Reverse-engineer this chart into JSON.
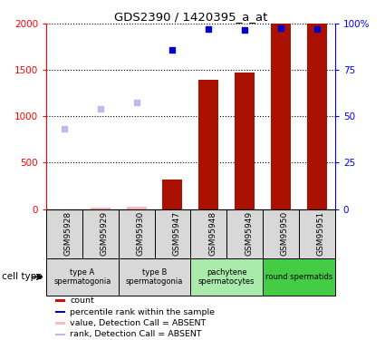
{
  "title": "GDS2390 / 1420395_a_at",
  "samples": [
    "GSM95928",
    "GSM95929",
    "GSM95930",
    "GSM95947",
    "GSM95948",
    "GSM95949",
    "GSM95950",
    "GSM95951"
  ],
  "bar_values": [
    0,
    0,
    0,
    320,
    1400,
    1470,
    2000,
    2000
  ],
  "absent_bar_values": [
    0,
    15,
    20,
    20,
    0,
    0,
    0,
    0
  ],
  "rank_present": [
    null,
    null,
    null,
    1720,
    1940,
    1930,
    1950,
    1940
  ],
  "rank_absent": [
    870,
    1080,
    1150,
    null,
    null,
    null,
    null,
    null
  ],
  "ylim": [
    0,
    2000
  ],
  "y2lim": [
    0,
    100
  ],
  "yticks": [
    0,
    500,
    1000,
    1500,
    2000
  ],
  "ytick_labels": [
    "0",
    "500",
    "1000",
    "1500",
    "2000"
  ],
  "y2ticks": [
    0,
    25,
    50,
    75,
    100
  ],
  "y2tick_labels": [
    "0",
    "25",
    "50",
    "75",
    "100%"
  ],
  "cell_type_groups": [
    {
      "label": "type A\nspermatogonia",
      "start": 0,
      "end": 2,
      "color": "#d8d8d8"
    },
    {
      "label": "type B\nspermatogonia",
      "start": 2,
      "end": 4,
      "color": "#d8d8d8"
    },
    {
      "label": "pachytene\nspermatocytes",
      "start": 4,
      "end": 6,
      "color": "#aaeaaa"
    },
    {
      "label": "round spermatids",
      "start": 6,
      "end": 8,
      "color": "#44cc44"
    }
  ],
  "legend_items": [
    {
      "color": "#cc1100",
      "label": "count"
    },
    {
      "color": "#0000cc",
      "label": "percentile rank within the sample"
    },
    {
      "color": "#ffbbbb",
      "label": "value, Detection Call = ABSENT"
    },
    {
      "color": "#bbbbee",
      "label": "rank, Detection Call = ABSENT"
    }
  ],
  "bar_color": "#aa1100",
  "absent_bar_color": "#ffbbbb",
  "present_rank_color": "#0000cc",
  "absent_rank_color": "#bbbbee",
  "bar_width": 0.55,
  "cell_type_label": "cell type"
}
